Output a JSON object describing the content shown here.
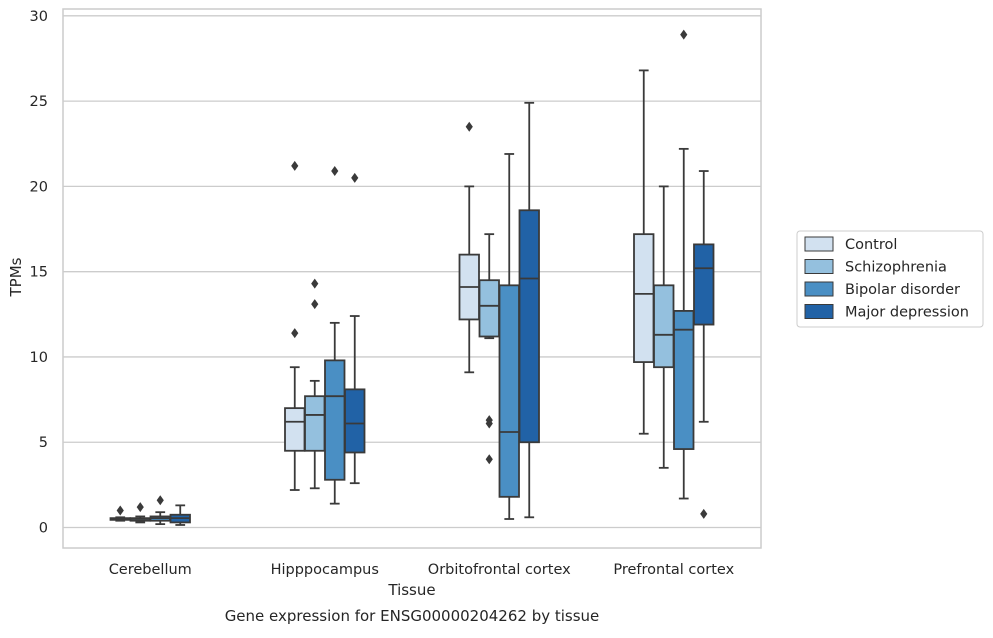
{
  "chart_data": {
    "type": "box",
    "title": "",
    "caption": "Gene expression for ENSG00000204262 by tissue",
    "xlabel": "Tissue",
    "ylabel": "TPMs",
    "ylim": [
      -1.2,
      30.4
    ],
    "yticks": [
      0,
      5,
      10,
      15,
      20,
      25,
      30
    ],
    "grid": "horizontal",
    "legend_position": "right",
    "categories": [
      "Cerebellum",
      "Hipppocampus",
      "Orbitofrontal cortex",
      "Prefrontal cortex"
    ],
    "colors": {
      "Control": "#d2e1f0",
      "Schizophrenia": "#94c0de",
      "Bipolar disorder": "#4a8fc4",
      "Major depression": "#2162a6",
      "outline": "#3a3a3a",
      "grid": "#cccccc"
    },
    "series": [
      {
        "name": "Control",
        "boxes": [
          {
            "min": 0.4,
            "q1": 0.45,
            "median": 0.5,
            "q3": 0.55,
            "max": 0.6,
            "outliers": [
              1.0
            ]
          },
          {
            "min": 2.2,
            "q1": 4.5,
            "median": 6.2,
            "q3": 7.0,
            "max": 9.4,
            "outliers": [
              11.4,
              21.2
            ]
          },
          {
            "min": 9.1,
            "q1": 12.2,
            "median": 14.1,
            "q3": 16.0,
            "max": 20.0,
            "outliers": [
              23.5
            ]
          },
          {
            "min": 5.5,
            "q1": 9.7,
            "median": 13.7,
            "q3": 17.2,
            "max": 26.8,
            "outliers": []
          }
        ]
      },
      {
        "name": "Schizophrenia",
        "boxes": [
          {
            "min": 0.3,
            "q1": 0.4,
            "median": 0.5,
            "q3": 0.55,
            "max": 0.65,
            "outliers": [
              1.2
            ]
          },
          {
            "min": 2.3,
            "q1": 4.5,
            "median": 6.6,
            "q3": 7.7,
            "max": 8.6,
            "outliers": [
              13.1,
              14.3
            ]
          },
          {
            "min": 11.1,
            "q1": 11.2,
            "median": 13.0,
            "q3": 14.5,
            "max": 17.2,
            "outliers": [
              6.1,
              6.3,
              4.0
            ]
          },
          {
            "min": 3.5,
            "q1": 9.4,
            "median": 11.3,
            "q3": 14.2,
            "max": 20.0,
            "outliers": []
          }
        ]
      },
      {
        "name": "Bipolar disorder",
        "boxes": [
          {
            "min": 0.2,
            "q1": 0.4,
            "median": 0.55,
            "q3": 0.65,
            "max": 0.9,
            "outliers": [
              1.6
            ]
          },
          {
            "min": 1.4,
            "q1": 2.8,
            "median": 7.7,
            "q3": 9.8,
            "max": 12.0,
            "outliers": [
              20.9
            ]
          },
          {
            "min": 0.5,
            "q1": 1.8,
            "median": 5.6,
            "q3": 14.2,
            "max": 21.9,
            "outliers": []
          },
          {
            "min": 1.7,
            "q1": 4.6,
            "median": 11.6,
            "q3": 12.7,
            "max": 22.2,
            "outliers": [
              28.9
            ]
          }
        ]
      },
      {
        "name": "Major depression",
        "boxes": [
          {
            "min": 0.15,
            "q1": 0.3,
            "median": 0.55,
            "q3": 0.75,
            "max": 1.3,
            "outliers": []
          },
          {
            "min": 2.6,
            "q1": 4.4,
            "median": 6.1,
            "q3": 8.1,
            "max": 12.4,
            "outliers": [
              20.5
            ]
          },
          {
            "min": 0.6,
            "q1": 5.0,
            "median": 14.6,
            "q3": 18.6,
            "max": 24.9,
            "outliers": []
          },
          {
            "min": 6.2,
            "q1": 11.9,
            "median": 15.2,
            "q3": 16.6,
            "max": 20.9,
            "outliers": [
              0.8
            ]
          }
        ]
      }
    ]
  }
}
